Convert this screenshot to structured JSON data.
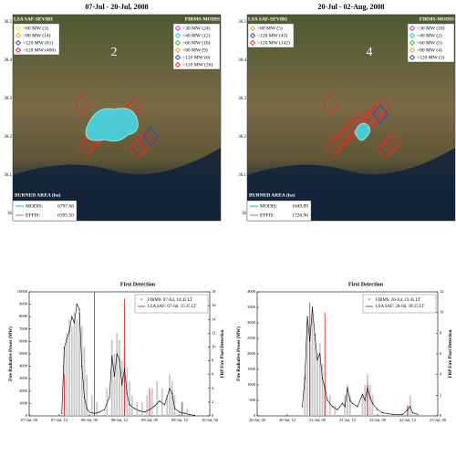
{
  "maps": [
    {
      "title": "07-Jul - 20-Jul, 2008",
      "panel_label": "2",
      "lat_labels": [
        36.5,
        36.4,
        36.3,
        36.2,
        36.1,
        36
      ],
      "left_legend": {
        "title": "LSA SAF-SEVIRI",
        "items": [
          {
            "label": "<60 MW (3)",
            "color": "#f0e020"
          },
          {
            "label": "<80 MW (14)",
            "color": "#f0a020"
          },
          {
            "label": "<120 MW (81)",
            "color": "#3040d0"
          },
          {
            "label": ">120 MW (408)",
            "color": "#e02020"
          }
        ]
      },
      "right_legend": {
        "title": "FIRMS-MODIS",
        "items": [
          {
            "label": "<30 MW (24)",
            "color": "#e020e0"
          },
          {
            "label": "<40 MW (12)",
            "color": "#20d0e0"
          },
          {
            "label": "<60 MW (10)",
            "color": "#20c020"
          },
          {
            "label": "<80 MW (9)",
            "color": "#f0a020"
          },
          {
            "label": "<120 MW (6)",
            "color": "#3040d0"
          },
          {
            "label": ">120 MW (26)",
            "color": "#e02020"
          }
        ]
      },
      "burned": {
        "title": "BURNED AREA (ha)",
        "items": [
          {
            "label": "MODIS:",
            "value": "6797.66",
            "color": "#40e0f0"
          },
          {
            "label": "EFFIS:",
            "value": "6395.50",
            "color": "#e0e0e0"
          }
        ]
      }
    },
    {
      "title": "20-Jul - 02-Aug, 2008",
      "panel_label": "4",
      "lat_labels": [
        36.5,
        36.4,
        36.3,
        36.2,
        36.1,
        36
      ],
      "left_legend": {
        "title": "LSA SAF-SEVIRI",
        "items": [
          {
            "label": "<80 MW (5)",
            "color": "#f0a020"
          },
          {
            "label": "<120 MW (43)",
            "color": "#3040d0"
          },
          {
            "label": ">120 MW (142)",
            "color": "#e02020"
          }
        ]
      },
      "right_legend": {
        "title": "FIRMS-MODIS",
        "items": [
          {
            "label": "<30 MW (10)",
            "color": "#e020e0"
          },
          {
            "label": "<40 MW (2)",
            "color": "#20d0e0"
          },
          {
            "label": "<60 MW (5)",
            "color": "#20c020"
          },
          {
            "label": "<80 MW (4)",
            "color": "#f0a020"
          },
          {
            "label": "<120 MW (3)",
            "color": "#3040d0"
          }
        ]
      },
      "burned": {
        "title": "BURNED AREA (ha)",
        "items": [
          {
            "label": "MODIS:",
            "value": "1649.89",
            "color": "#40e0f0"
          },
          {
            "label": "EFFIS:",
            "value": "1726.96",
            "color": "#e0e0e0"
          }
        ]
      }
    }
  ],
  "chart_data": [
    {
      "type": "bar_line",
      "title": "First Detection",
      "ylabel": "Fire Radiative Power (MW)",
      "y2label": "FRP Fire Pixel Detection",
      "xlim": [
        0,
        72
      ],
      "xticks": [
        {
          "value": 0,
          "label": "07-Jul, 00"
        },
        {
          "value": 12,
          "label": "07-Jul, 12"
        },
        {
          "value": 24,
          "label": "08-Jul, 00"
        },
        {
          "value": 36,
          "label": "08-Jul, 12"
        },
        {
          "value": 48,
          "label": "09-Jul, 00"
        },
        {
          "value": 60,
          "label": "09-Jul, 12"
        },
        {
          "value": 72,
          "label": "10-Jul, 00"
        }
      ],
      "ylim": [
        0,
        10000
      ],
      "yticks": [
        0,
        1000,
        2000,
        3000,
        4000,
        5000,
        6000,
        7000,
        8000,
        9000,
        10000
      ],
      "y2lim": [
        0,
        18
      ],
      "y2ticks": [
        0,
        2,
        4,
        6,
        8,
        10,
        12,
        14,
        16,
        18
      ],
      "series": [
        {
          "type": "bar",
          "axis": "y2",
          "color": "#c8c8c8",
          "x": [
            14,
            15,
            16,
            17,
            18,
            19,
            20,
            21,
            22,
            23,
            25,
            27,
            31,
            33,
            34,
            35,
            36,
            37,
            38,
            39,
            40,
            41,
            43,
            45,
            47,
            49,
            51,
            53,
            55,
            56,
            57,
            58,
            61,
            63
          ],
          "values": [
            10,
            12,
            14,
            13,
            15,
            14,
            15,
            13,
            10,
            6,
            3,
            2,
            4,
            11,
            9,
            12,
            11,
            8,
            10,
            7,
            5,
            3,
            2,
            2,
            3,
            4,
            5,
            4,
            3,
            6,
            5,
            3,
            2,
            1
          ]
        },
        {
          "name": "FIRMS: 07-Jul, 14:45 LT",
          "type": "bar",
          "axis": "y2",
          "color": "#e83030",
          "x": [
            14,
            26,
            38,
            48,
            61
          ],
          "values": [
            6,
            18,
            17,
            4,
            2
          ]
        },
        {
          "name": "LSA SAF: 07-Jul, 15:15 LT",
          "type": "line",
          "color": "#000000",
          "x": [
            13,
            14,
            15,
            16,
            17,
            18,
            19,
            20,
            21,
            22,
            23,
            24,
            26,
            28,
            30,
            32,
            33,
            34,
            35,
            36,
            37,
            38,
            39,
            40,
            42,
            44,
            46,
            48,
            50,
            52,
            54,
            56,
            57,
            58,
            60,
            62,
            64,
            66
          ],
          "values": [
            200,
            5500,
            6200,
            6800,
            8000,
            7500,
            9000,
            8600,
            4000,
            1500,
            600,
            300,
            200,
            300,
            500,
            1500,
            4800,
            3200,
            5000,
            4500,
            2500,
            3800,
            1800,
            900,
            600,
            400,
            300,
            500,
            800,
            1200,
            900,
            2200,
            1800,
            600,
            300,
            200,
            100,
            50
          ]
        }
      ]
    },
    {
      "type": "bar_line",
      "title": "First Detection",
      "ylabel": "Fire Radiative Power (MW)",
      "y2label": "FRP Fire Pixel Detection",
      "xlim": [
        0,
        72
      ],
      "xticks": [
        {
          "value": 0,
          "label": "20-Jul, 00"
        },
        {
          "value": 12,
          "label": "20-Jul, 12"
        },
        {
          "value": 24,
          "label": "21-Jul, 00"
        },
        {
          "value": 36,
          "label": "21-Jul, 12"
        },
        {
          "value": 48,
          "label": "22-Jul, 00"
        },
        {
          "value": 60,
          "label": "22-Jul, 12"
        },
        {
          "value": 72,
          "label": "23-Jul, 00"
        }
      ],
      "ylim": [
        0,
        4000
      ],
      "yticks": [
        0,
        500,
        1000,
        1500,
        2000,
        2500,
        3000,
        3500,
        4000
      ],
      "y2lim": [
        0,
        12
      ],
      "y2ticks": [
        0,
        2,
        4,
        6,
        8,
        10,
        12
      ],
      "series": [
        {
          "type": "bar",
          "axis": "y2",
          "color": "#c8c8c8",
          "x": [
            19,
            20,
            21,
            22,
            23,
            24,
            25,
            26,
            27,
            29,
            31,
            35,
            36,
            37,
            42,
            43,
            44,
            45,
            46,
            60,
            61
          ],
          "values": [
            4,
            9,
            7,
            10,
            8,
            6,
            7,
            5,
            3,
            2,
            1,
            2,
            3,
            2,
            2,
            3,
            4,
            3,
            2,
            1,
            2
          ]
        },
        {
          "name": "FIRMS: 20-Jul, 23:45 LT",
          "type": "bar",
          "axis": "y2",
          "color": "#e83030",
          "x": [
            21,
            27,
            44,
            60
          ],
          "values": [
            11,
            10,
            3,
            1
          ]
        },
        {
          "name": "LSA SAF: 20-Jul, 18:15 LT",
          "type": "line",
          "color": "#000000",
          "x": [
            18,
            19,
            20,
            21,
            22,
            23,
            24,
            25,
            26,
            27,
            28,
            30,
            32,
            34,
            35,
            36,
            37,
            38,
            40,
            42,
            43,
            44,
            45,
            46,
            48,
            50,
            54,
            58,
            60,
            61,
            62,
            64
          ],
          "values": [
            300,
            1200,
            3200,
            2400,
            3500,
            2600,
            1800,
            2000,
            1200,
            900,
            500,
            300,
            200,
            400,
            300,
            900,
            500,
            400,
            300,
            700,
            500,
            900,
            600,
            400,
            200,
            100,
            50,
            50,
            200,
            300,
            100,
            50
          ]
        }
      ]
    }
  ]
}
